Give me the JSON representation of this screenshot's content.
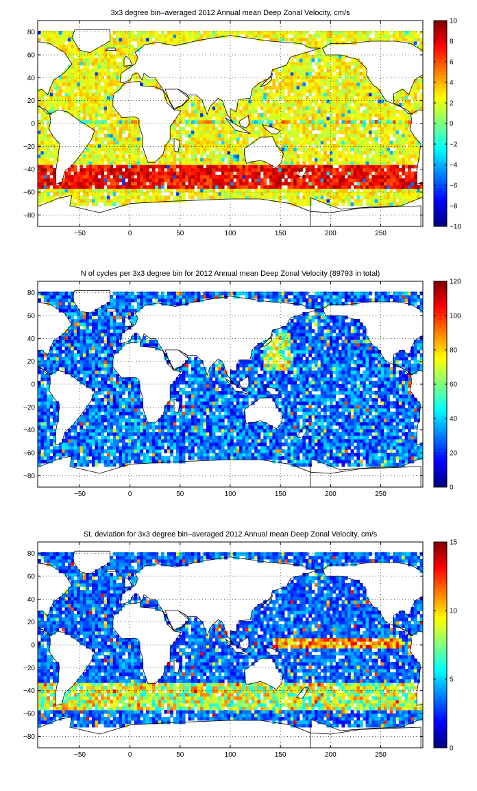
{
  "panels": [
    {
      "title": "3x3 degree bin–averaged 2012 Annual mean Deep Zonal Velocity, cm/s",
      "colormap": "jet",
      "colorbar": {
        "min": -10,
        "max": 10,
        "ticks": [
          "10",
          "8",
          "6",
          "4",
          "2",
          "0",
          "−2",
          "−4",
          "−6",
          "−8",
          "−10"
        ]
      },
      "field": "velocity"
    },
    {
      "title": "N of cycles per 3x3 degree bin for 2012 Annual mean Deep Zonal Velocity (89793 in total)",
      "colormap": "jet",
      "colorbar": {
        "min": 0,
        "max": 120,
        "ticks": [
          "120",
          "100",
          "80",
          "60",
          "40",
          "20",
          "0"
        ]
      },
      "field": "count"
    },
    {
      "title": "St. deviation for 3x3 degree bin–averaged 2012 Annual mean Deep Zonal Velocity, cm/s",
      "colormap": "jet",
      "colorbar": {
        "min": 0,
        "max": 15,
        "ticks": [
          "15",
          "10",
          "5",
          "0"
        ]
      },
      "field": "stdev"
    }
  ],
  "map": {
    "x_ticks": [
      "−50",
      "0",
      "50",
      "100",
      "150",
      "200",
      "250"
    ],
    "y_ticks": [
      "80",
      "60",
      "40",
      "20",
      "0",
      "−20",
      "−40",
      "−60",
      "−80"
    ],
    "lon_range": [
      -92,
      292
    ],
    "lat_range": [
      -90,
      90
    ],
    "grid": "dotted"
  },
  "colors": {
    "land": "#ffffff",
    "axis": "#000000"
  }
}
